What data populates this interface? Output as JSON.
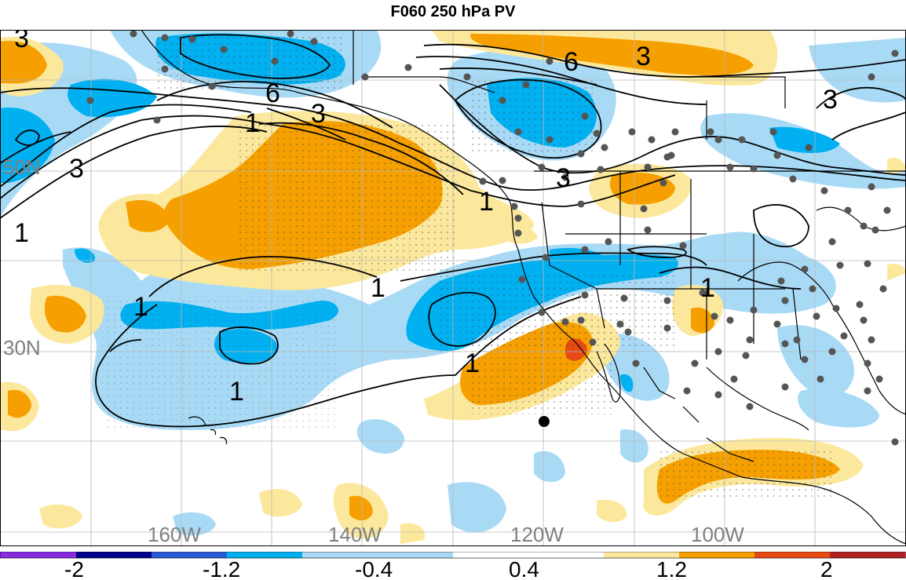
{
  "title": "F060 250 hPa PV",
  "map": {
    "lon_labels": [
      "160W",
      "140W",
      "120W",
      "100W"
    ],
    "lat_labels": [
      "50N",
      "30N"
    ],
    "contour_labels": [
      "6",
      "3",
      "3",
      "1",
      "3",
      "1",
      "6",
      "3",
      "3",
      "3",
      "1",
      "1",
      "1",
      "1",
      "1"
    ],
    "colors": {
      "neg_strong": "#00b0f0",
      "neg_weak": "#a8daf6",
      "pos_weak": "#fce89c",
      "pos_strong": "#f5a000",
      "pos_red": "#e84a12",
      "contour": "#000000",
      "coast": "#000000",
      "grid": "#b0b0b0",
      "dot": "#555555"
    }
  },
  "colorbar": {
    "labels": [
      "-2",
      "-1.2",
      "-0.4",
      "0.4",
      "1.2",
      "2"
    ],
    "colors": [
      "#8a2be2",
      "#00008b",
      "#2a5bd7",
      "#00b0f0",
      "#a8daf6",
      "#ffffff",
      "#fce89c",
      "#f5a000",
      "#e84a12",
      "#b22222",
      "#ff77aa"
    ]
  }
}
